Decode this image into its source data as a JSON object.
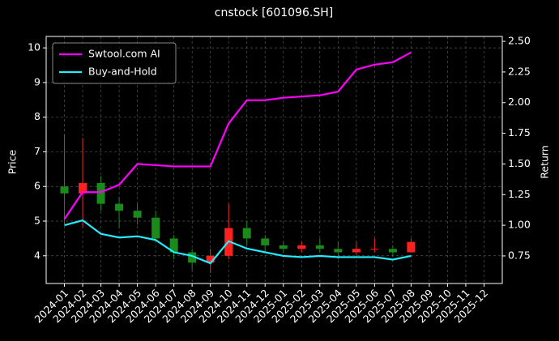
{
  "chart_data": {
    "type": "candlestick",
    "title": "cnstock [601096.SH]",
    "ylabel": "Price",
    "y2label": "Return",
    "x": [
      "2024-01",
      "2024-02",
      "2024-03",
      "2024-04",
      "2024-05",
      "2024-06",
      "2024-07",
      "2024-08",
      "2024-09",
      "2024-10",
      "2024-11",
      "2024-12",
      "2025-01",
      "2025-02",
      "2025-03",
      "2025-04",
      "2025-05",
      "2025-06",
      "2025-07",
      "2025-08"
    ],
    "open": [
      6.0,
      5.8,
      6.1,
      5.5,
      5.3,
      5.1,
      4.5,
      4.1,
      3.8,
      4.0,
      4.8,
      4.5,
      4.3,
      4.2,
      4.3,
      4.2,
      4.1,
      4.2,
      4.2,
      4.1
    ],
    "high": [
      7.5,
      7.4,
      6.3,
      5.7,
      5.5,
      5.3,
      4.6,
      4.2,
      4.2,
      5.5,
      5.0,
      4.6,
      4.4,
      4.4,
      4.5,
      4.4,
      4.4,
      4.5,
      4.3,
      4.5
    ],
    "low": [
      4.9,
      4.8,
      5.3,
      4.8,
      4.9,
      4.4,
      3.9,
      3.6,
      3.5,
      3.9,
      4.3,
      4.1,
      4.1,
      4.1,
      4.1,
      3.9,
      4.0,
      4.1,
      4.0,
      4.1
    ],
    "close": [
      5.8,
      6.1,
      5.5,
      5.3,
      5.1,
      4.5,
      4.1,
      3.8,
      4.0,
      4.8,
      4.5,
      4.3,
      4.2,
      4.3,
      4.2,
      4.1,
      4.2,
      4.2,
      4.1,
      4.4
    ],
    "up_color": "#ff2020",
    "down_color": "#1a8a1a",
    "series": [
      {
        "name": "Swtool.com AI",
        "color": "#ff00ff",
        "axis": "y2",
        "values": [
          1.05,
          1.27,
          1.27,
          1.33,
          1.5,
          1.49,
          1.48,
          1.48,
          1.48,
          1.83,
          2.02,
          2.02,
          2.04,
          2.05,
          2.06,
          2.09,
          2.27,
          2.31,
          2.33,
          2.41
        ]
      },
      {
        "name": "Buy-and-Hold",
        "color": "#22eeff",
        "axis": "y2",
        "values": [
          1.0,
          1.04,
          0.93,
          0.9,
          0.91,
          0.88,
          0.78,
          0.75,
          0.69,
          0.87,
          0.81,
          0.78,
          0.75,
          0.74,
          0.75,
          0.74,
          0.74,
          0.74,
          0.72,
          0.75
        ]
      }
    ],
    "xlim": [
      "2023-12",
      "2026-01"
    ],
    "xticks": [
      "2024-01",
      "2024-02",
      "2024-03",
      "2024-04",
      "2024-05",
      "2024-06",
      "2024-07",
      "2024-08",
      "2024-09",
      "2024-10",
      "2024-11",
      "2024-12",
      "2025-01",
      "2025-02",
      "2025-03",
      "2025-04",
      "2025-05",
      "2025-06",
      "2025-07",
      "2025-08",
      "2025-09",
      "2025-10",
      "2025-11",
      "2025-12"
    ],
    "ylim": [
      3.2,
      10.33
    ],
    "yticks": [
      4,
      5,
      6,
      7,
      8,
      9,
      10
    ],
    "y2lim": [
      0.525,
      2.54
    ],
    "y2ticks": [
      0.75,
      {
        "value": 1.0,
        "label": "1.00"
      },
      1.25,
      {
        "value": 1.5,
        "label": "1.50"
      },
      1.75,
      {
        "value": 2.0,
        "label": "2.00"
      },
      2.25,
      {
        "value": 2.5,
        "label": "2.50"
      }
    ],
    "grid": true,
    "legend": "upper left"
  }
}
